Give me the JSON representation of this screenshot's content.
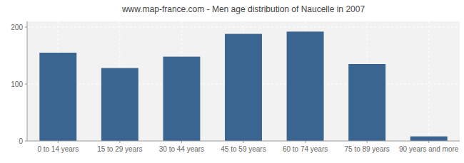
{
  "chart_data": {
    "type": "bar",
    "title": "www.map-france.com - Men age distribution of Naucelle in 2007",
    "categories": [
      "0 to 14 years",
      "15 to 29 years",
      "30 to 44 years",
      "45 to 59 years",
      "60 to 74 years",
      "75 to 89 years",
      "90 years and more"
    ],
    "values": [
      155,
      128,
      148,
      188,
      192,
      135,
      8
    ],
    "color": "#3a6591",
    "ylim": [
      0,
      210
    ],
    "yticks": [
      0,
      100,
      200
    ],
    "grid": true
  }
}
